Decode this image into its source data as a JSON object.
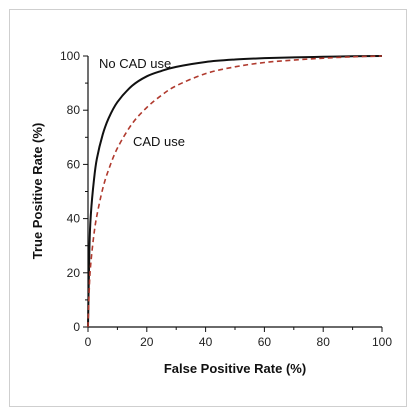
{
  "chart_data": {
    "type": "line",
    "title": "",
    "xlabel": "False Positive Rate (%)",
    "ylabel": "True Positive Rate (%)",
    "xlim": [
      0,
      100
    ],
    "ylim": [
      0,
      100
    ],
    "xticks": [
      0,
      20,
      40,
      60,
      80,
      100
    ],
    "yticks": [
      0,
      20,
      40,
      60,
      80,
      100
    ],
    "grid": false,
    "legend": "none",
    "series": [
      {
        "name": "No CAD use",
        "color": "#111111",
        "style": "solid",
        "x": [
          0,
          0.5,
          1,
          2,
          3,
          5,
          7,
          10,
          15,
          20,
          25,
          30,
          40,
          50,
          60,
          70,
          80,
          90,
          100
        ],
        "y": [
          0,
          30,
          42,
          54,
          62,
          71,
          77,
          83,
          89,
          92.5,
          94.5,
          96,
          97.8,
          98.7,
          99.2,
          99.5,
          99.7,
          99.9,
          100
        ]
      },
      {
        "name": "CAD use",
        "color": "#b03a2e",
        "style": "dashed",
        "x": [
          0,
          0.5,
          1,
          2,
          3,
          5,
          7,
          10,
          15,
          20,
          25,
          30,
          40,
          50,
          60,
          70,
          80,
          90,
          100
        ],
        "y": [
          0,
          16,
          24,
          34,
          41,
          51,
          58,
          66,
          75,
          81,
          85.5,
          89,
          93.5,
          96,
          97.6,
          98.5,
          99.2,
          99.7,
          100
        ]
      }
    ],
    "annotations": [
      {
        "text": "No CAD use",
        "series": "No CAD use"
      },
      {
        "text": "CAD use",
        "series": "CAD use"
      }
    ]
  }
}
